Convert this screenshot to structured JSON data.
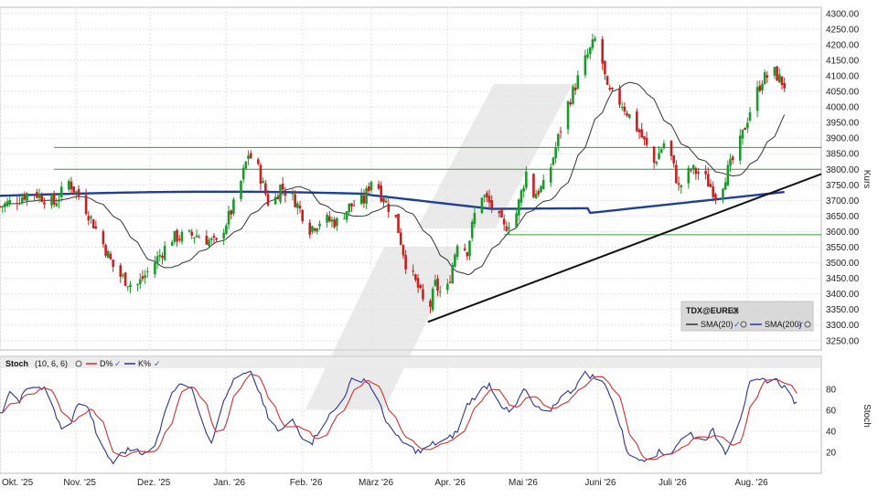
{
  "chart_data": [
    {
      "type": "candlestick",
      "panel": "price",
      "ylabel": "Kurs",
      "ylim": [
        3220,
        4320
      ],
      "y_ticks": [
        3250,
        3300,
        3350,
        3400,
        3450,
        3500,
        3550,
        3600,
        3650,
        3700,
        3750,
        3800,
        3850,
        3900,
        3950,
        4000,
        4050,
        4100,
        4150,
        4200,
        4250,
        4300
      ],
      "y_tick_labels": [
        "3250.00",
        "3300.00",
        "3350.00",
        "3400.00",
        "3450.00",
        "3500.00",
        "3550.00",
        "3600.00",
        "3650.00",
        "3700.00",
        "3750.00",
        "3800.00",
        "3850.00",
        "3900.00",
        "3950.00",
        "4000.00",
        "4050.00",
        "4100.00",
        "4150.00",
        "4200.00",
        "4250.00",
        "4300.00"
      ],
      "x_labels": [
        "Okt. '25",
        "Nov. '25",
        "Dez. '25",
        "Jan. '26",
        "Feb. '26",
        "März '26",
        "Apr. '26",
        "Mai '26",
        "Juni '26",
        "Juli '26",
        "Aug. '26"
      ],
      "x_label_day": [
        0,
        31,
        61,
        92,
        123,
        151,
        182,
        212,
        243,
        273,
        304
      ],
      "x_total_days": 334,
      "grid": true,
      "price_anchors": [
        [
          0,
          3680
        ],
        [
          6,
          3700
        ],
        [
          13,
          3730
        ],
        [
          22,
          3690
        ],
        [
          28,
          3760
        ],
        [
          34,
          3690
        ],
        [
          42,
          3560
        ],
        [
          47,
          3470
        ],
        [
          55,
          3420
        ],
        [
          60,
          3470
        ],
        [
          70,
          3580
        ],
        [
          80,
          3590
        ],
        [
          88,
          3560
        ],
        [
          96,
          3700
        ],
        [
          101,
          3850
        ],
        [
          105,
          3800
        ],
        [
          110,
          3670
        ],
        [
          114,
          3745
        ],
        [
          120,
          3700
        ],
        [
          126,
          3610
        ],
        [
          131,
          3640
        ],
        [
          137,
          3630
        ],
        [
          142,
          3680
        ],
        [
          148,
          3700
        ],
        [
          152,
          3790
        ],
        [
          155,
          3720
        ],
        [
          161,
          3640
        ],
        [
          165,
          3500
        ],
        [
          170,
          3420
        ],
        [
          174,
          3330
        ],
        [
          177,
          3430
        ],
        [
          181,
          3380
        ],
        [
          186,
          3570
        ],
        [
          190,
          3540
        ],
        [
          195,
          3730
        ],
        [
          200,
          3680
        ],
        [
          205,
          3610
        ],
        [
          210,
          3660
        ],
        [
          214,
          3790
        ],
        [
          217,
          3720
        ],
        [
          222,
          3750
        ],
        [
          230,
          3990
        ],
        [
          238,
          4150
        ],
        [
          243,
          4230
        ],
        [
          247,
          4050
        ],
        [
          253,
          4010
        ],
        [
          260,
          3920
        ],
        [
          266,
          3820
        ],
        [
          271,
          3900
        ],
        [
          276,
          3740
        ],
        [
          281,
          3800
        ],
        [
          286,
          3780
        ],
        [
          292,
          3710
        ],
        [
          295,
          3780
        ],
        [
          300,
          3860
        ],
        [
          305,
          3990
        ],
        [
          310,
          4090
        ],
        [
          315,
          4110
        ],
        [
          320,
          4060
        ]
      ],
      "indicators": [
        {
          "name": "SMA(20)",
          "color": "#222222",
          "check": "✓"
        },
        {
          "name": "SMA(200)",
          "color": "#1f3f99",
          "check": "✓"
        }
      ],
      "legend_title": "TDX@EUREX",
      "legend_placement": "bottom-right",
      "support_levels": [
        3870,
        3800,
        3590
      ],
      "trendline": {
        "from": [
          174,
          3310
        ],
        "to": [
          334,
          3785
        ]
      },
      "colors": {
        "up": "#1a9a2a",
        "down": "#c62020",
        "sma20": "#333333",
        "sma200": "#1f3f99",
        "support": "#3c9c3c",
        "trend": "#111111"
      }
    },
    {
      "type": "line",
      "panel": "stochastic",
      "title": "Stoch",
      "params": "(10, 6, 6)",
      "ylabel": "Stoch",
      "ylim": [
        0,
        100
      ],
      "y_ticks": [
        20,
        40,
        60,
        80
      ],
      "y_tick_labels": [
        "20",
        "40",
        "60",
        "80"
      ],
      "series": [
        {
          "name": "D%",
          "color": "#d03030"
        },
        {
          "name": "K%",
          "color": "#2a3490"
        }
      ],
      "k_anchors": [
        [
          0,
          55
        ],
        [
          4,
          75
        ],
        [
          8,
          70
        ],
        [
          13,
          85
        ],
        [
          18,
          80
        ],
        [
          22,
          60
        ],
        [
          26,
          35
        ],
        [
          30,
          55
        ],
        [
          33,
          75
        ],
        [
          37,
          55
        ],
        [
          41,
          25
        ],
        [
          46,
          10
        ],
        [
          50,
          20
        ],
        [
          55,
          25
        ],
        [
          59,
          18
        ],
        [
          63,
          25
        ],
        [
          67,
          60
        ],
        [
          72,
          85
        ],
        [
          75,
          88
        ],
        [
          79,
          75
        ],
        [
          83,
          45
        ],
        [
          86,
          30
        ],
        [
          89,
          55
        ],
        [
          94,
          85
        ],
        [
          98,
          93
        ],
        [
          102,
          95
        ],
        [
          106,
          75
        ],
        [
          110,
          45
        ],
        [
          114,
          40
        ],
        [
          119,
          50
        ],
        [
          123,
          35
        ],
        [
          127,
          30
        ],
        [
          132,
          50
        ],
        [
          138,
          65
        ],
        [
          143,
          88
        ],
        [
          148,
          90
        ],
        [
          152,
          80
        ],
        [
          156,
          55
        ],
        [
          161,
          35
        ],
        [
          166,
          25
        ],
        [
          171,
          20
        ],
        [
          176,
          28
        ],
        [
          181,
          30
        ],
        [
          186,
          40
        ],
        [
          190,
          65
        ],
        [
          195,
          78
        ],
        [
          199,
          85
        ],
        [
          204,
          65
        ],
        [
          208,
          55
        ],
        [
          213,
          80
        ],
        [
          217,
          65
        ],
        [
          222,
          55
        ],
        [
          227,
          70
        ],
        [
          233,
          80
        ],
        [
          238,
          95
        ],
        [
          243,
          90
        ],
        [
          247,
          82
        ],
        [
          251,
          55
        ],
        [
          255,
          22
        ],
        [
          259,
          12
        ],
        [
          263,
          15
        ],
        [
          268,
          20
        ],
        [
          272,
          17
        ],
        [
          276,
          30
        ],
        [
          281,
          38
        ],
        [
          285,
          30
        ],
        [
          290,
          40
        ],
        [
          295,
          20
        ],
        [
          300,
          45
        ],
        [
          305,
          85
        ],
        [
          310,
          88
        ],
        [
          315,
          90
        ],
        [
          320,
          80
        ],
        [
          324,
          65
        ]
      ],
      "colors": {
        "k": "#2a3490",
        "d": "#d03030"
      }
    }
  ]
}
